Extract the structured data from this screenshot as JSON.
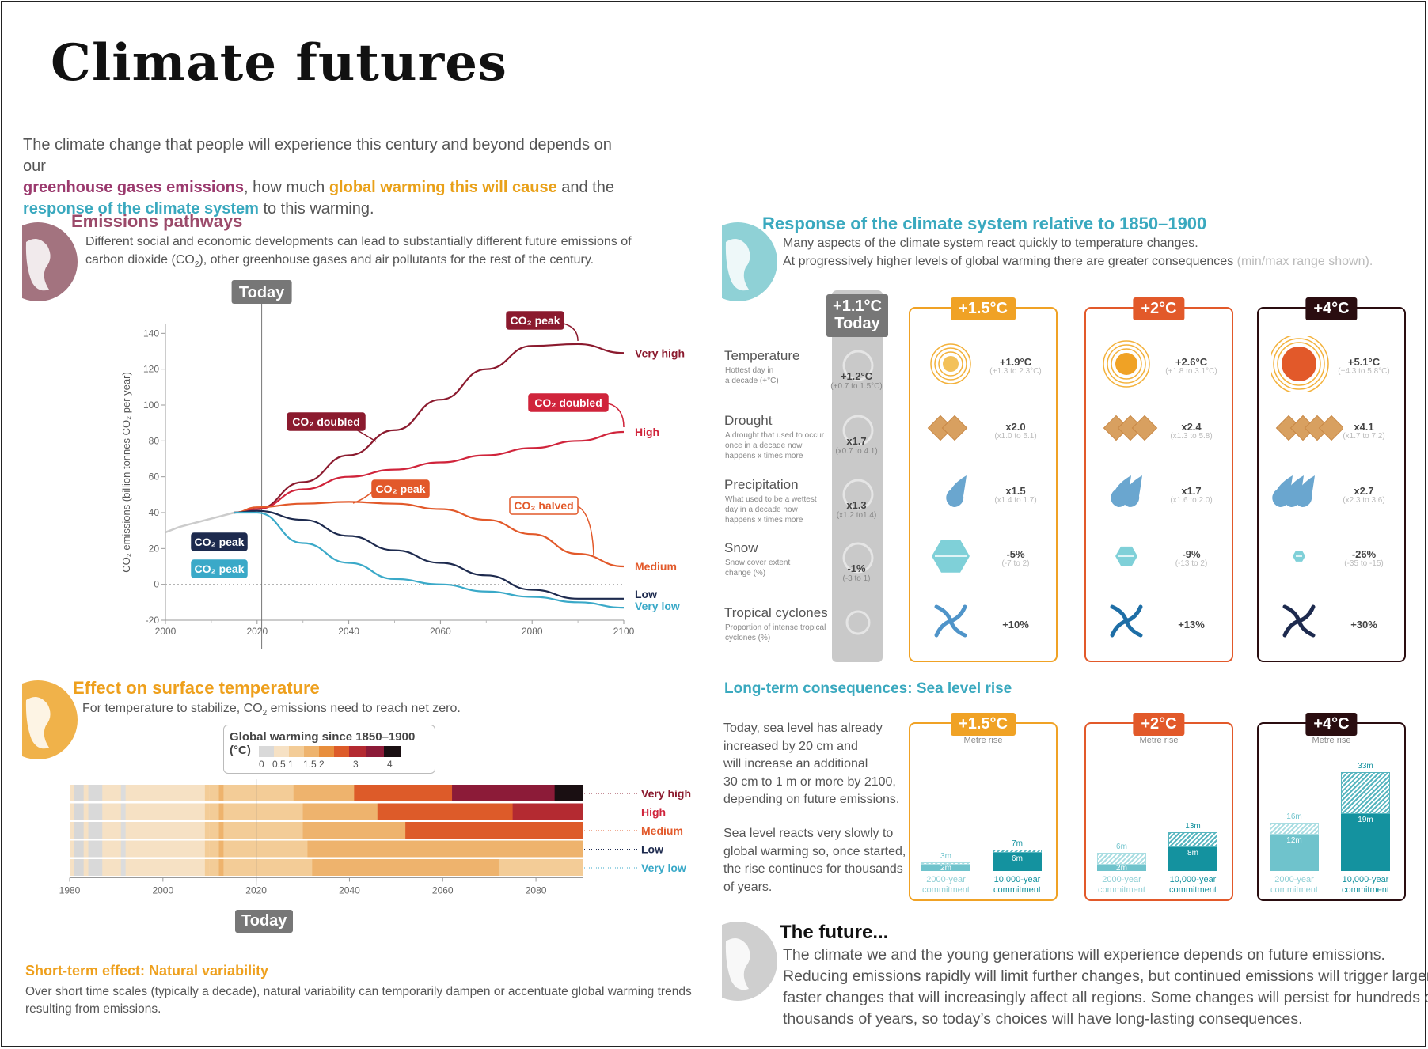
{
  "title": "Climate futures",
  "intro": {
    "l1": "The climate change that people will experience this century and beyond depends on our",
    "ghg": "greenhouse gases emissions",
    "l2": ", how much ",
    "gw": "global warming this will cause",
    "l3": " and the",
    "resp": "response of the climate system",
    "l4": " to this warming."
  },
  "emissions": {
    "title": "Emissions pathways",
    "body1": "Different social and economic developments can lead to substantially different future emissions of",
    "body2": "carbon dioxide (CO",
    "body2_sub": "2",
    "body2_end": "), other greenhouse gases and air pollutants for the rest of the century.",
    "today": "Today"
  },
  "surface": {
    "title": "Effect on surface temperature",
    "body": "For temperature to stabilize, CO",
    "body_sub": "2",
    "body_end": " emissions need to reach net zero.",
    "legend_title": "Global warming since 1850–1900 (°C)",
    "legend_ticks": [
      "0",
      "0.5",
      "1",
      "1.5",
      "2",
      "3",
      "4"
    ],
    "legend_colors": [
      "#d9d9d9",
      "#f6e1c4",
      "#f3cc97",
      "#eeb36d",
      "#e88e3c",
      "#dd5b29",
      "#b42a31",
      "#8c1b38",
      "#1a0f12"
    ],
    "x_ticks": [
      "1980",
      "2000",
      "2020",
      "2040",
      "2060",
      "2080"
    ],
    "today": "Today"
  },
  "short_term": {
    "title": "Short-term effect: Natural variability",
    "body1": "Over short time scales (typically a decade), natural variability can temporarily dampen or accentuate global warming trends",
    "body2": "resulting from emissions."
  },
  "response": {
    "title": "Response of the climate system relative to 1850–1900",
    "body1": "Many aspects of the climate system react quickly to temperature changes.",
    "body2": "At progressively higher levels of global warming there are greater consequences",
    "body2_note": " (min/max range shown).",
    "today_head1": "+1.1°C",
    "today_head2": "Today",
    "boxes": [
      {
        "label": "+1.5°C",
        "color": "#f0a225"
      },
      {
        "label": "+2°C",
        "color": "#e2592a"
      },
      {
        "label": "+4°C",
        "color": "#2a0d10"
      }
    ],
    "rows": [
      {
        "name": "Temperature",
        "sub1": "Hottest day in",
        "sub2": "a decade (+°C)",
        "icon": "sun-icon",
        "today_v": "+1.2°C",
        "today_r": "(+0.7 to 1.5°C)",
        "vals": [
          [
            "+1.9°C",
            "(+1.3 to 2.3°C)"
          ],
          [
            "+2.6°C",
            "(+1.8 to 3.1°C)"
          ],
          [
            "+5.1°C",
            "(+4.3 to 5.8°C)"
          ]
        ]
      },
      {
        "name": "Drought",
        "sub1": "A drought that used to occur",
        "sub2": "once in a decade now",
        "sub3": "happens x times more",
        "icon": "drought-icon",
        "today_v": "x1.7",
        "today_r": "(x0.7 to 4.1)",
        "vals": [
          [
            "x2.0",
            "(x1.0 to 5.1)"
          ],
          [
            "x2.4",
            "(x1.3 to 5.8)"
          ],
          [
            "x4.1",
            "(x1.7 to 7.2)"
          ]
        ]
      },
      {
        "name": "Precipitation",
        "sub1": "What used to be a wettest",
        "sub2": "day in a decade now",
        "sub3": "happens x times more",
        "icon": "raindrop-icon",
        "today_v": "x1.3",
        "today_r": "(x1.2 to1.4)",
        "vals": [
          [
            "x1.5",
            "(x1.4 to 1.7)"
          ],
          [
            "x1.7",
            "(x1.6 to 2.0)"
          ],
          [
            "x2.7",
            "(x2.3 to 3.6)"
          ]
        ]
      },
      {
        "name": "Snow",
        "sub1": "Snow cover extent",
        "sub2": "change (%)",
        "icon": "snowflake-icon",
        "today_v": "-1%",
        "today_r": "(-3 to 1)",
        "vals": [
          [
            "-5%",
            "(-7 to 2)"
          ],
          [
            "-9%",
            "(-13 to 2)"
          ],
          [
            "-26%",
            "(-35 to -15)"
          ]
        ]
      },
      {
        "name": "Tropical cyclones",
        "sub1": "Proportion of intense tropical",
        "sub2": "cyclones (%)",
        "icon": "cyclone-icon",
        "today_v": "",
        "today_r": "",
        "vals": [
          [
            "+10%",
            ""
          ],
          [
            "+13%",
            ""
          ],
          [
            "+30%",
            ""
          ]
        ]
      }
    ]
  },
  "sea_level": {
    "title": "Long-term consequences: Sea level rise",
    "text1": [
      "Today, sea level has already",
      "increased by 20 cm and",
      "will increase an additional",
      "30 cm to 1 m or more by 2100,",
      "depending on future emissions."
    ],
    "text2": [
      "Sea level reacts very slowly to",
      "global warming so, once started,",
      "the rise continues for thousands",
      "of years."
    ],
    "metre_rise": "Metre rise",
    "bar_label_2000": [
      "2000-year",
      "commitment"
    ],
    "bar_label_10000": [
      "10,000-year",
      "commitment"
    ],
    "groups": [
      {
        "label": "+1.5°C",
        "color": "#f0a225",
        "b2k": {
          "min": 2,
          "max": 3,
          "min_l": "2m",
          "max_l": "3m"
        },
        "b10k": {
          "min": 6,
          "max": 7,
          "min_l": "6m",
          "max_l": "7m"
        }
      },
      {
        "label": "+2°C",
        "color": "#e2592a",
        "b2k": {
          "min": 2,
          "max": 6,
          "min_l": "2m",
          "max_l": "6m"
        },
        "b10k": {
          "min": 8,
          "max": 13,
          "min_l": "8m",
          "max_l": "13m"
        }
      },
      {
        "label": "+4°C",
        "color": "#2a0d10",
        "b2k": {
          "min": 12,
          "max": 16,
          "min_l": "12m",
          "max_l": "16m"
        },
        "b10k": {
          "min": 19,
          "max": 33,
          "min_l": "19m",
          "max_l": "33m"
        }
      }
    ]
  },
  "future": {
    "title": "The future...",
    "lines": [
      "The climate we and the young generations will experience depends on future emissions.",
      "Reducing emissions rapidly will limit further changes, but continued emissions will trigger larger,",
      "faster changes that will increasingly affect all regions. Some changes will persist for hundreds or",
      "thousands of years, so today’s choices will have long-lasting consequences."
    ]
  },
  "chart_data": [
    {
      "type": "line",
      "title": "Emissions pathways",
      "xlabel": "",
      "ylabel": "CO₂ emissions (billion tonnes CO₂ per year)",
      "xlim": [
        2000,
        2100
      ],
      "ylim": [
        -20,
        145
      ],
      "x_ticks": [
        2000,
        2020,
        2040,
        2060,
        2080,
        2100
      ],
      "y_ticks": [
        -20,
        0,
        20,
        40,
        60,
        80,
        100,
        120,
        140
      ],
      "historical": {
        "x": [
          2000,
          2003,
          2006,
          2009,
          2012,
          2015
        ],
        "y": [
          29,
          32,
          34,
          36,
          38,
          40
        ]
      },
      "series": [
        {
          "name": "Very high",
          "color": "#8b1a2e",
          "x": [
            2015,
            2020,
            2030,
            2040,
            2050,
            2060,
            2070,
            2080,
            2090,
            2100
          ],
          "y": [
            40,
            42,
            57,
            72,
            86,
            103,
            120,
            133,
            134,
            129
          ]
        },
        {
          "name": "High",
          "color": "#d0243b",
          "x": [
            2015,
            2020,
            2030,
            2040,
            2050,
            2060,
            2070,
            2080,
            2090,
            2100
          ],
          "y": [
            40,
            42,
            53,
            60,
            64,
            68,
            72,
            76,
            80,
            85
          ]
        },
        {
          "name": "Medium",
          "color": "#e2592a",
          "x": [
            2015,
            2020,
            2030,
            2040,
            2050,
            2060,
            2070,
            2080,
            2090,
            2100
          ],
          "y": [
            40,
            43,
            45,
            46,
            45,
            42,
            36,
            28,
            17,
            10
          ]
        },
        {
          "name": "Low",
          "color": "#1d2a4e",
          "x": [
            2015,
            2020,
            2030,
            2040,
            2050,
            2060,
            2070,
            2080,
            2090,
            2100
          ],
          "y": [
            40,
            41,
            36,
            27,
            19,
            12,
            5,
            -3,
            -8,
            -8
          ]
        },
        {
          "name": "Very low",
          "color": "#3aa9c8",
          "x": [
            2015,
            2020,
            2030,
            2040,
            2050,
            2060,
            2070,
            2080,
            2090,
            2100
          ],
          "y": [
            40,
            40,
            23,
            12,
            3,
            0,
            -4,
            -7,
            -10,
            -13
          ]
        }
      ],
      "annotations": [
        {
          "text": "CO₂ peak",
          "target": "Very high"
        },
        {
          "text": "CO₂ doubled",
          "target": "Very high"
        },
        {
          "text": "CO₂ doubled",
          "target": "High"
        },
        {
          "text": "CO₂ peak",
          "target": "Medium"
        },
        {
          "text": "CO₂ halved",
          "target": "Medium"
        },
        {
          "text": "CO₂ peak",
          "target": "Low"
        },
        {
          "text": "CO₂ peak",
          "target": "Very low"
        }
      ]
    },
    {
      "type": "heatmap",
      "title": "Global warming since 1850–1900 (°C)",
      "xlim": [
        1980,
        2090
      ],
      "x_ticks": [
        1980,
        2000,
        2020,
        2040,
        2060,
        2080
      ],
      "rows": [
        {
          "name": "Very high",
          "segments": [
            [
              1980,
              2010,
              "#f6e1c4"
            ],
            [
              2010,
              2028,
              "#f3cc97"
            ],
            [
              2028,
              2041,
              "#eeb36d"
            ],
            [
              2041,
              2062,
              "#dd5b29"
            ],
            [
              2062,
              2084,
              "#8c1b38"
            ],
            [
              2084,
              2090,
              "#1a0f12"
            ]
          ]
        },
        {
          "name": "High",
          "segments": [
            [
              1980,
              2010,
              "#f6e1c4"
            ],
            [
              2010,
              2030,
              "#f3cc97"
            ],
            [
              2030,
              2046,
              "#eeb36d"
            ],
            [
              2046,
              2075,
              "#dd5b29"
            ],
            [
              2075,
              2090,
              "#b42a31"
            ]
          ]
        },
        {
          "name": "Medium",
          "segments": [
            [
              1980,
              2010,
              "#f6e1c4"
            ],
            [
              2010,
              2030,
              "#f3cc97"
            ],
            [
              2030,
              2052,
              "#eeb36d"
            ],
            [
              2052,
              2090,
              "#dd5b29"
            ]
          ]
        },
        {
          "name": "Low",
          "segments": [
            [
              1980,
              2010,
              "#f6e1c4"
            ],
            [
              2010,
              2031,
              "#f3cc97"
            ],
            [
              2031,
              2090,
              "#eeb36d"
            ]
          ]
        },
        {
          "name": "Very low",
          "segments": [
            [
              1980,
              2010,
              "#f6e1c4"
            ],
            [
              2010,
              2032,
              "#f3cc97"
            ],
            [
              2032,
              2072,
              "#eeb36d"
            ],
            [
              2072,
              2090,
              "#f3cc97"
            ]
          ]
        }
      ]
    }
  ]
}
